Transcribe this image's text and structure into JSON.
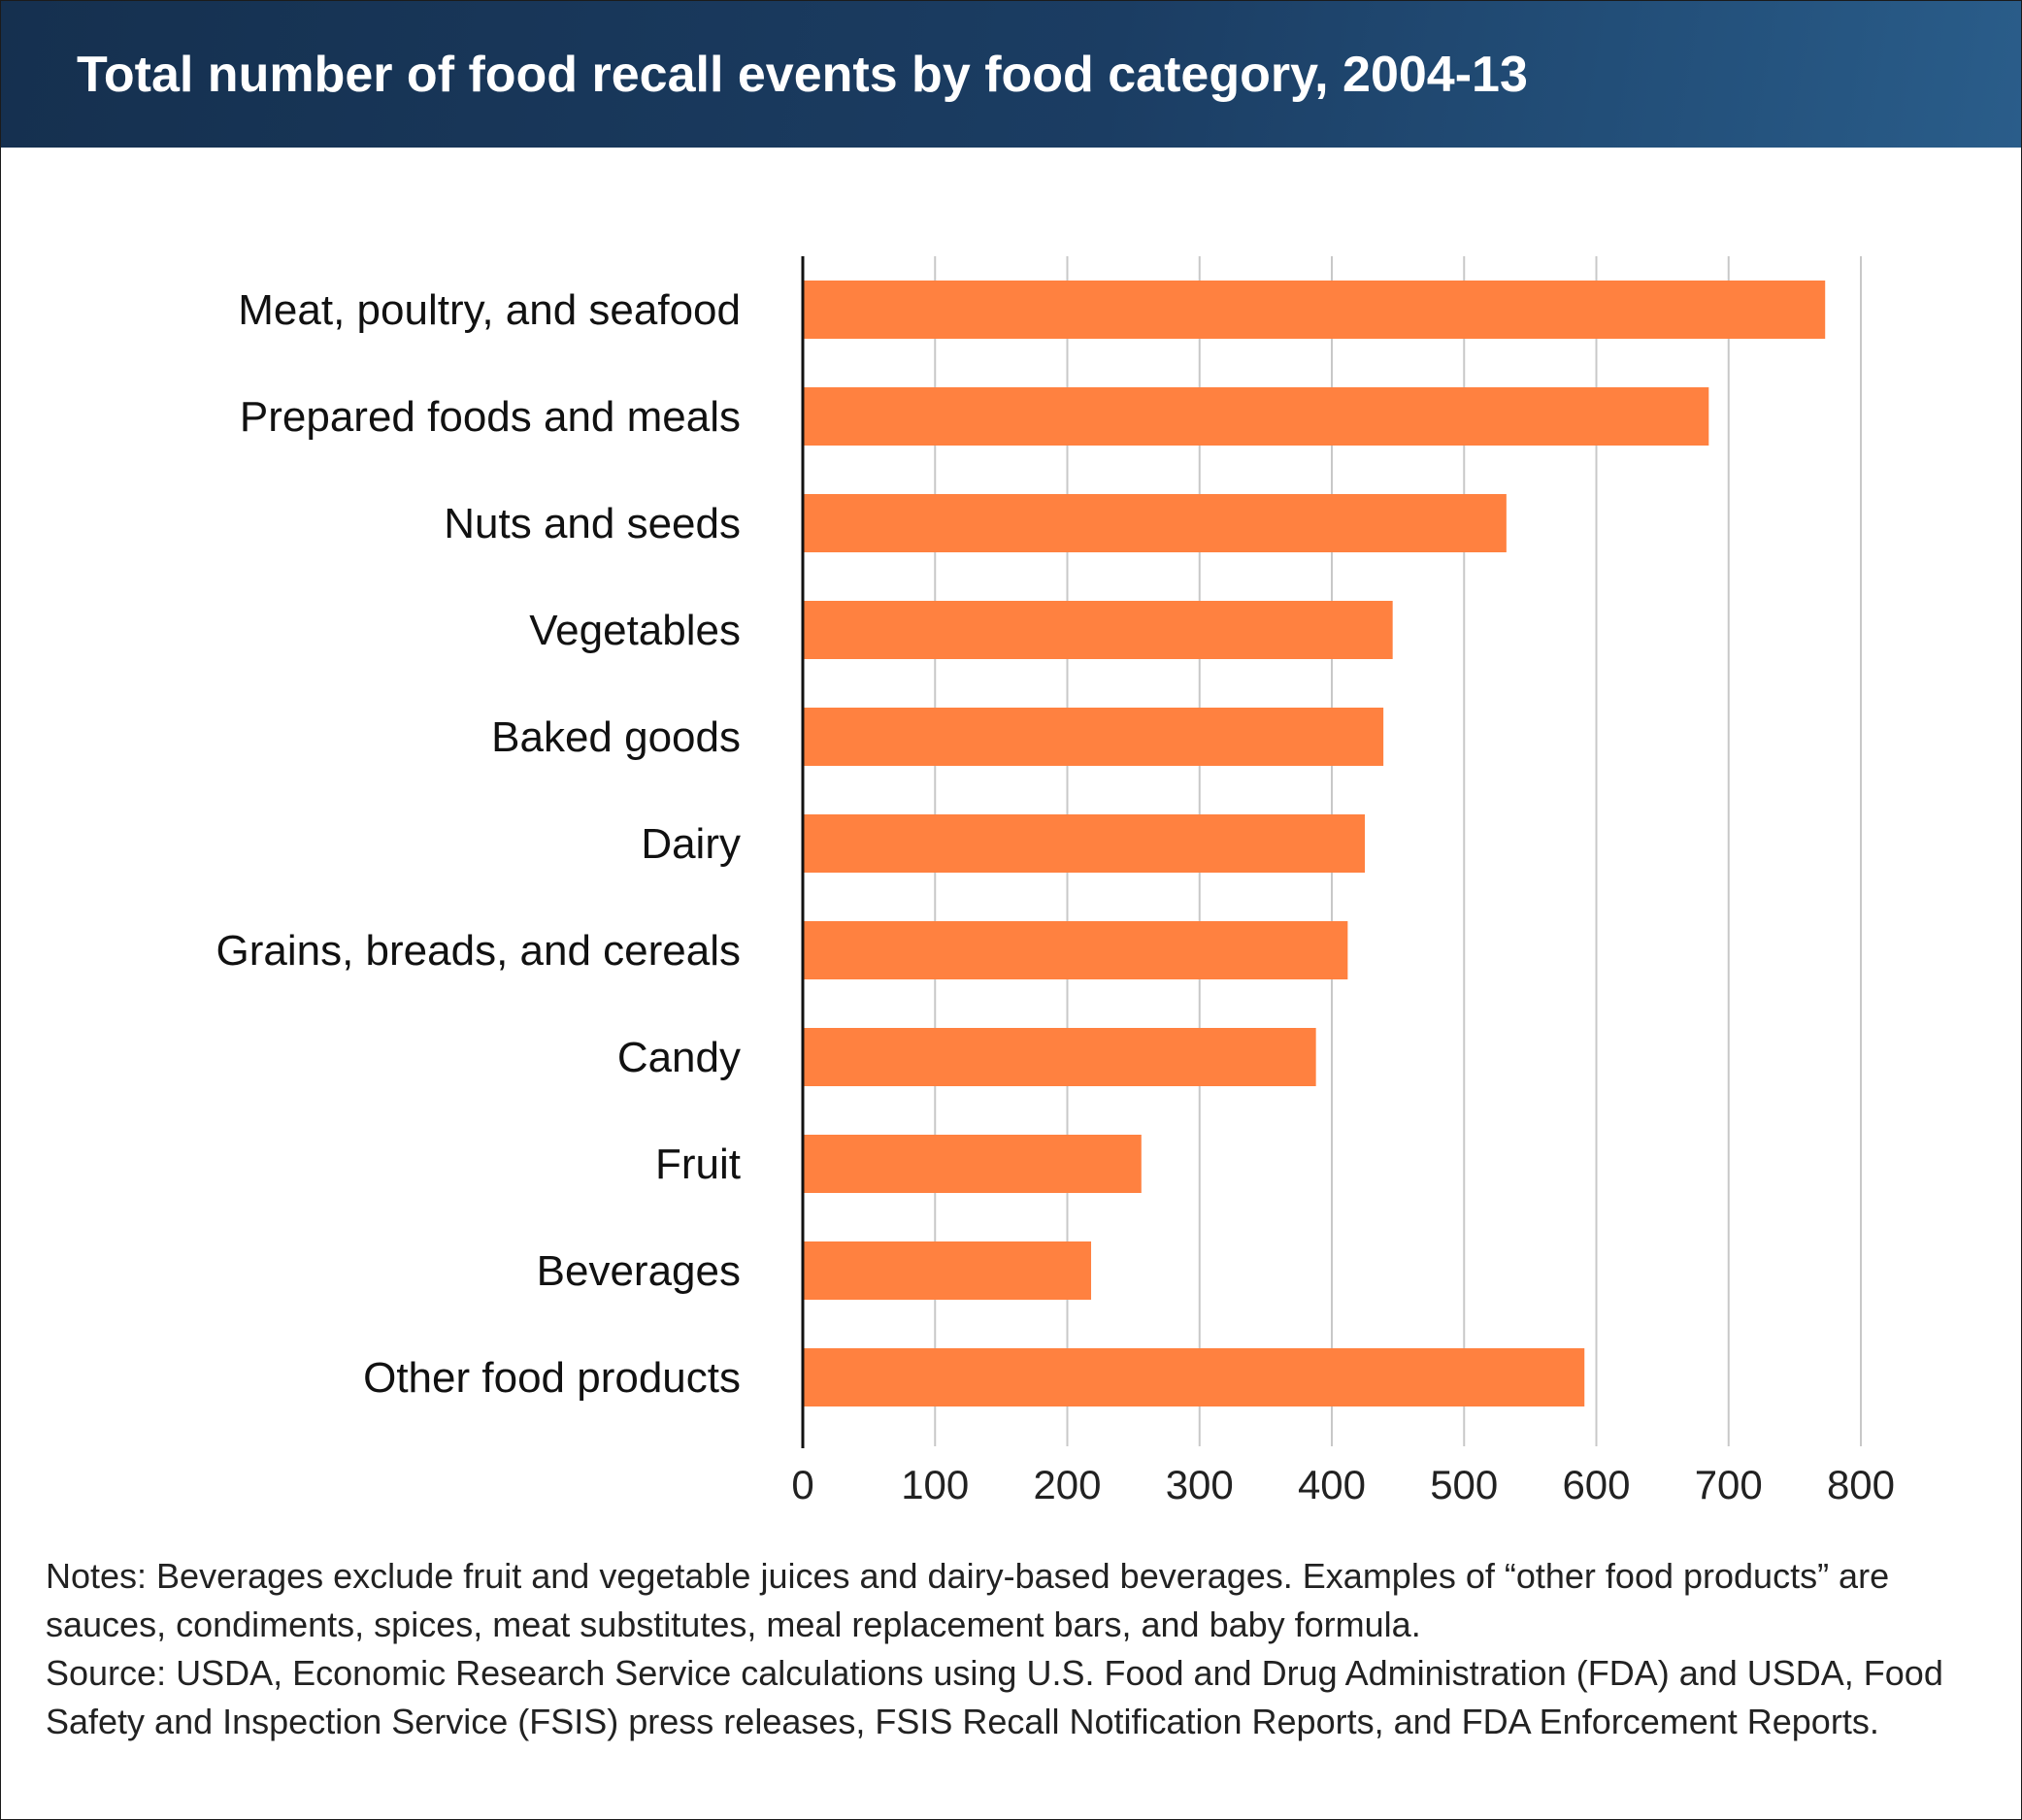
{
  "header": {
    "title": "Total number of food recall events by food category, 2004-13"
  },
  "chart_data": {
    "type": "bar",
    "orientation": "horizontal",
    "title": "Total number of food recall events by food category, 2004-13",
    "xlabel": "",
    "ylabel": "",
    "xlim": [
      0,
      800
    ],
    "x_ticks": [
      "0",
      "100",
      "200",
      "300",
      "400",
      "500",
      "600",
      "700",
      "800"
    ],
    "grid": "vertical",
    "legend": "none",
    "bar_color": "#ff8140",
    "categories": [
      "Meat, poultry, and seafood",
      "Prepared foods and meals",
      "Nuts and seeds",
      "Vegetables",
      "Baked goods",
      "Dairy",
      "Grains, breads, and cereals",
      "Candy",
      "Fruit",
      "Beverages",
      "Other food products"
    ],
    "values": [
      773,
      685,
      532,
      446,
      439,
      425,
      412,
      388,
      256,
      218,
      591
    ]
  },
  "notes": {
    "line1": "Notes: Beverages exclude fruit and vegetable juices and dairy-based beverages. Examples of “other food products” are sauces, condiments, spices, meat substitutes, meal replacement bars, and baby formula.",
    "line2": "Source: USDA, Economic Research Service calculations using U.S. Food and Drug Administration (FDA) and USDA, Food Safety and Inspection Service (FSIS) press releases, FSIS Recall Notification Reports, and FDA Enforcement Reports."
  }
}
